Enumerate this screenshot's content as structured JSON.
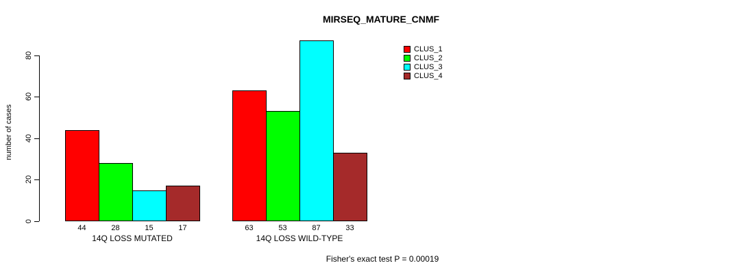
{
  "chart_data": {
    "type": "bar",
    "title": "MIRSEQ_MATURE_CNMF",
    "ylabel": "number of cases",
    "xlabel": "",
    "yticks": [
      0,
      20,
      40,
      60,
      80
    ],
    "ylim": [
      0,
      90
    ],
    "grid": false,
    "legend_position": "top-right",
    "categories": [
      "14Q LOSS MUTATED",
      "14Q LOSS WILD-TYPE"
    ],
    "series": [
      {
        "name": "CLUS_1",
        "color": "#FF0000",
        "values": [
          44,
          63
        ]
      },
      {
        "name": "CLUS_2",
        "color": "#00FF00",
        "values": [
          28,
          53
        ]
      },
      {
        "name": "CLUS_3",
        "color": "#00FFFF",
        "values": [
          15,
          87
        ]
      },
      {
        "name": "CLUS_4",
        "color": "#A52A2A",
        "values": [
          17,
          33
        ]
      }
    ],
    "bar_value_labels_shown": true,
    "footnote": "Fisher's exact test P = 0.00019"
  }
}
